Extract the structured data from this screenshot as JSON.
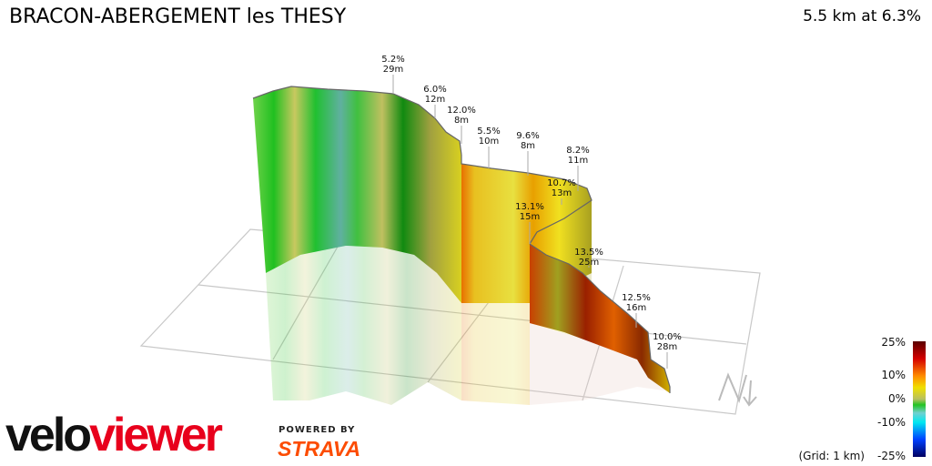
{
  "header": {
    "title": "BRACON-ABERGEMENT les THESY",
    "summary": "5.5 km at 6.3%"
  },
  "chart_data": {
    "type": "3d-elevation-profile",
    "annotations": [
      {
        "grade": "5.2%",
        "gain": "29m"
      },
      {
        "grade": "6.0%",
        "gain": "12m"
      },
      {
        "grade": "12.0%",
        "gain": "8m"
      },
      {
        "grade": "5.5%",
        "gain": "10m"
      },
      {
        "grade": "9.6%",
        "gain": "8m"
      },
      {
        "grade": "8.2%",
        "gain": "11m"
      },
      {
        "grade": "10.7%",
        "gain": "13m"
      },
      {
        "grade": "13.1%",
        "gain": "15m"
      },
      {
        "grade": "13.5%",
        "gain": "25m"
      },
      {
        "grade": "12.5%",
        "gain": "16m"
      },
      {
        "grade": "10.0%",
        "gain": "28m"
      }
    ],
    "legend": {
      "ticks": [
        "25%",
        "10%",
        "0%",
        "-10%",
        "-25%"
      ],
      "grid_note": "(Grid: 1 km)",
      "colors": [
        "#5a0000",
        "#d40000",
        "#ff8c00",
        "#f0e000",
        "#b8c060",
        "#22c322",
        "#70d0d0",
        "#00e8f0",
        "#0040ff",
        "#000060"
      ]
    },
    "north_label": "N"
  },
  "branding": {
    "logo_part1": "velo",
    "logo_part2": "viewer",
    "powered": "POWERED BY",
    "strava": "STRAVA"
  }
}
